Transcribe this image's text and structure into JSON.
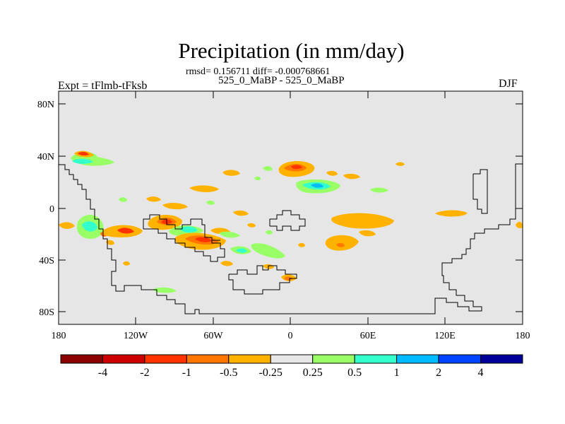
{
  "title": "Precipitation (in mm/day)",
  "stats": "rmsd= 0.156711 diff= -0.000768661",
  "subtitle": "525_0_MaBP - 525_0_MaBP",
  "left_label": "Expt = tFlmb-tFksb",
  "right_label": "DJF",
  "lat_ticks": [
    "80N",
    "40N",
    "0",
    "40S",
    "80S"
  ],
  "lon_ticks": [
    "180",
    "120W",
    "60W",
    "0",
    "60E",
    "120E",
    "180"
  ],
  "colorbar": {
    "colors": [
      "#8B0000",
      "#CC0000",
      "#FF3300",
      "#FF7700",
      "#FFB200",
      "#E6E6E6",
      "#99FF66",
      "#33FFCC",
      "#00BBFF",
      "#0044FF",
      "#000099"
    ],
    "labels": [
      "-4",
      "-2",
      "-1",
      "-0.5",
      "-0.25",
      "0.25",
      "0.5",
      "1",
      "2",
      "4"
    ]
  },
  "colors": {
    "background": "#E6E6E6",
    "frame": "#000000",
    "coast": "#000000"
  }
}
